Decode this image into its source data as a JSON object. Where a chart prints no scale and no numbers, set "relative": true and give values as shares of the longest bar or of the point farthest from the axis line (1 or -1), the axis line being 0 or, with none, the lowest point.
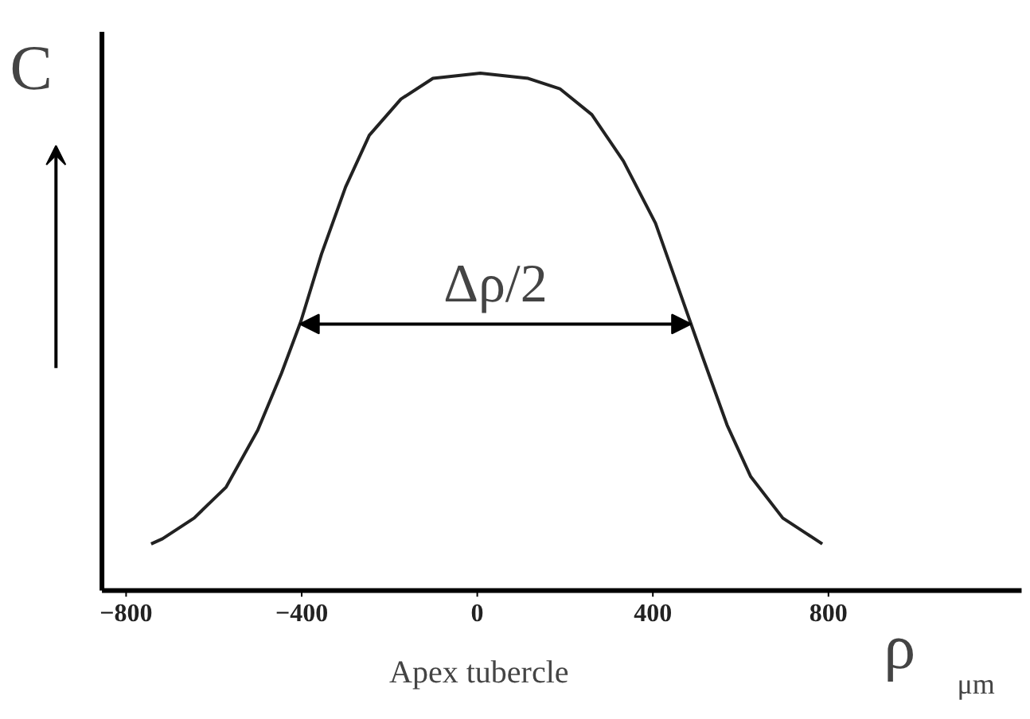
{
  "chart_data": {
    "type": "line",
    "relative": true,
    "xlabel": "ρ$_{μm}$",
    "ylabel": "C",
    "x": [
      -743,
      -717,
      -645,
      -572,
      -500,
      -446,
      -402,
      -355,
      -300,
      -246,
      -174,
      -101,
      7,
      116,
      188,
      261,
      333,
      406,
      460,
      514,
      569,
      623,
      696,
      750,
      786
    ],
    "series": [
      {
        "color": "#222222",
        "values": [
          0.09,
          0.1,
          0.14,
          0.2,
          0.31,
          0.42,
          0.52,
          0.65,
          0.78,
          0.88,
          0.95,
          0.99,
          1.0,
          0.99,
          0.97,
          0.92,
          0.83,
          0.71,
          0.58,
          0.45,
          0.32,
          0.22,
          0.14,
          0.11,
          0.09
        ]
      }
    ],
    "xlim": [
      -855,
      1240
    ],
    "xticks": [
      {
        "value": -800,
        "label": "−800"
      },
      {
        "value": -400,
        "label": "−400"
      },
      0,
      400,
      800
    ],
    "tick_labels": "x",
    "annotations": [
      "Δρ/2",
      "Apex tubercle"
    ]
  }
}
